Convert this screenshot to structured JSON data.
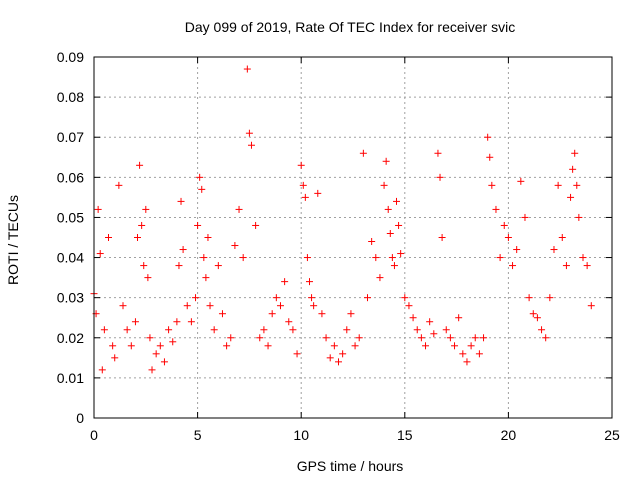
{
  "chart_data": {
    "type": "scatter",
    "title": "Day 099 of 2019, Rate Of TEC Index for receiver svic",
    "xlabel": "GPS time / hours",
    "ylabel": "ROTI / TECUs",
    "xlim": [
      0,
      25
    ],
    "ylim": [
      0,
      0.09
    ],
    "xticks": [
      0,
      5,
      10,
      15,
      20,
      25
    ],
    "yticks": [
      0,
      0.01,
      0.02,
      0.03,
      0.04,
      0.05,
      0.06,
      0.07,
      0.08,
      0.09
    ],
    "xtick_labels": [
      "0",
      "5",
      "10",
      "15",
      "20",
      "25"
    ],
    "ytick_labels": [
      "0",
      "0.01",
      "0.02",
      "0.03",
      "0.04",
      "0.05",
      "0.06",
      "0.07",
      "0.08",
      "0.09"
    ],
    "grid": true,
    "marker": "plus",
    "series": [
      {
        "name": "ROTI",
        "color": "#ff0000",
        "x": [
          0.0,
          0.1,
          0.2,
          0.3,
          0.4,
          0.5,
          0.7,
          0.9,
          1.0,
          1.2,
          1.4,
          1.6,
          1.8,
          2.0,
          2.1,
          2.2,
          2.3,
          2.4,
          2.5,
          2.6,
          2.7,
          2.8,
          3.0,
          3.2,
          3.4,
          3.6,
          3.8,
          4.0,
          4.1,
          4.2,
          4.3,
          4.5,
          4.7,
          4.9,
          5.0,
          5.1,
          5.2,
          5.3,
          5.4,
          5.5,
          5.6,
          5.8,
          6.0,
          6.2,
          6.4,
          6.6,
          6.8,
          7.0,
          7.2,
          7.4,
          7.5,
          7.6,
          7.8,
          8.0,
          8.2,
          8.4,
          8.6,
          8.8,
          9.0,
          9.2,
          9.4,
          9.6,
          9.8,
          10.0,
          10.1,
          10.2,
          10.3,
          10.4,
          10.5,
          10.6,
          10.8,
          11.0,
          11.2,
          11.4,
          11.6,
          11.8,
          12.0,
          12.2,
          12.4,
          12.6,
          12.8,
          13.0,
          13.2,
          13.4,
          13.6,
          13.8,
          14.0,
          14.1,
          14.2,
          14.3,
          14.4,
          14.5,
          14.6,
          14.7,
          14.8,
          15.0,
          15.2,
          15.4,
          15.6,
          15.8,
          16.0,
          16.2,
          16.4,
          16.6,
          16.7,
          16.8,
          17.0,
          17.2,
          17.4,
          17.6,
          17.8,
          18.0,
          18.2,
          18.4,
          18.6,
          18.8,
          19.0,
          19.1,
          19.2,
          19.4,
          19.6,
          19.8,
          20.0,
          20.2,
          20.4,
          20.6,
          20.8,
          21.0,
          21.2,
          21.4,
          21.6,
          21.8,
          22.0,
          22.2,
          22.4,
          22.6,
          22.8,
          23.0,
          23.1,
          23.2,
          23.3,
          23.4,
          23.6,
          23.8,
          24.0
        ],
        "y": [
          0.031,
          0.026,
          0.052,
          0.041,
          0.012,
          0.022,
          0.045,
          0.018,
          0.015,
          0.058,
          0.028,
          0.022,
          0.018,
          0.024,
          0.045,
          0.063,
          0.048,
          0.038,
          0.052,
          0.035,
          0.02,
          0.012,
          0.016,
          0.018,
          0.014,
          0.022,
          0.019,
          0.024,
          0.038,
          0.054,
          0.042,
          0.028,
          0.024,
          0.03,
          0.048,
          0.06,
          0.057,
          0.04,
          0.035,
          0.045,
          0.028,
          0.022,
          0.038,
          0.026,
          0.018,
          0.02,
          0.043,
          0.052,
          0.04,
          0.087,
          0.071,
          0.068,
          0.048,
          0.02,
          0.022,
          0.018,
          0.026,
          0.03,
          0.028,
          0.034,
          0.024,
          0.022,
          0.016,
          0.063,
          0.058,
          0.055,
          0.04,
          0.034,
          0.03,
          0.028,
          0.056,
          0.026,
          0.02,
          0.015,
          0.018,
          0.014,
          0.016,
          0.022,
          0.026,
          0.018,
          0.02,
          0.066,
          0.03,
          0.044,
          0.04,
          0.035,
          0.058,
          0.064,
          0.052,
          0.046,
          0.04,
          0.038,
          0.054,
          0.048,
          0.041,
          0.03,
          0.028,
          0.025,
          0.022,
          0.02,
          0.018,
          0.024,
          0.021,
          0.066,
          0.06,
          0.045,
          0.022,
          0.02,
          0.018,
          0.025,
          0.016,
          0.014,
          0.018,
          0.02,
          0.016,
          0.02,
          0.07,
          0.065,
          0.058,
          0.052,
          0.04,
          0.048,
          0.045,
          0.038,
          0.042,
          0.059,
          0.05,
          0.03,
          0.026,
          0.025,
          0.022,
          0.02,
          0.03,
          0.042,
          0.058,
          0.045,
          0.038,
          0.055,
          0.062,
          0.066,
          0.058,
          0.05,
          0.04,
          0.038,
          0.028
        ]
      }
    ]
  }
}
